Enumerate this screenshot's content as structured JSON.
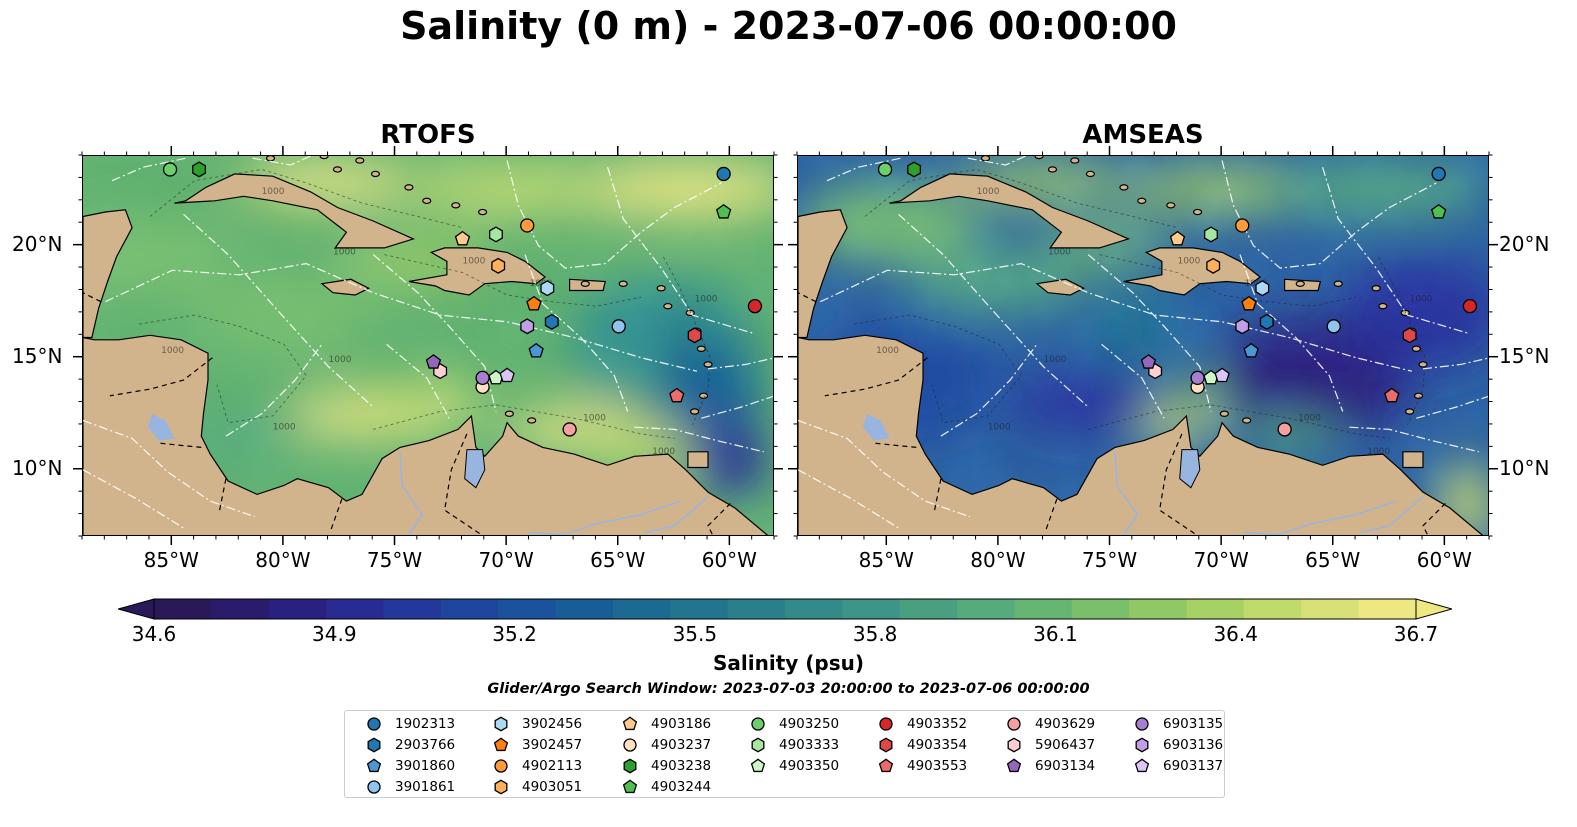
{
  "title": "Salinity (0 m) - 2023-07-06 00:00:00",
  "panels": [
    {
      "title": "RTOFS",
      "theme": "rtofs"
    },
    {
      "title": "AMSEAS",
      "theme": "amseas"
    }
  ],
  "axes": {
    "lat_labels": [
      "20°N",
      "15°N",
      "10°N"
    ],
    "lon_labels": [
      "85°W",
      "80°W",
      "75°W",
      "70°W",
      "65°W",
      "60°W"
    ],
    "lat_values": [
      20,
      15,
      10
    ],
    "lon_values": [
      -85,
      -80,
      -75,
      -70,
      -65,
      -60
    ],
    "lon_range": [
      -89,
      -58
    ],
    "lat_range": [
      7,
      24
    ]
  },
  "colorbar": {
    "label": "Salinity (psu)",
    "min": 34.6,
    "max": 36.7,
    "tick_labels": [
      "34.6",
      "34.9",
      "35.2",
      "35.5",
      "35.8",
      "36.1",
      "36.4",
      "36.7"
    ],
    "colors": [
      "#2a1958",
      "#2b1d7a",
      "#27309a",
      "#1c4a9e",
      "#175e97",
      "#1f728f",
      "#2d858b",
      "#3e9885",
      "#55ab7b",
      "#74bd6d",
      "#9bcd62",
      "#c6dc6e",
      "#efe882"
    ]
  },
  "colors": {
    "land": "#d2b48c",
    "lake": "#98b5df",
    "rtofs_ocean": "#5fb06e",
    "amseas_ocean": "#2b5fa0",
    "deep_pacific": "#2a1a66"
  },
  "search_window": "Glider/Argo Search Window: 2023-07-03 20:00:00 to 2023-07-06 00:00:00",
  "legend": [
    {
      "id": "1902313",
      "marker": "circle",
      "color": "#1f77b4"
    },
    {
      "id": "2903766",
      "marker": "hexagon",
      "color": "#1f77b4"
    },
    {
      "id": "3901860",
      "marker": "pentagon",
      "color": "#4a97d6"
    },
    {
      "id": "3901861",
      "marker": "circle",
      "color": "#90c4ec"
    },
    {
      "id": "3902456",
      "marker": "hexagon",
      "color": "#aed9f5"
    },
    {
      "id": "3902457",
      "marker": "pentagon",
      "color": "#ff7f0e"
    },
    {
      "id": "4902113",
      "marker": "circle",
      "color": "#ff9a3c"
    },
    {
      "id": "4903051",
      "marker": "hexagon",
      "color": "#ffb05a"
    },
    {
      "id": "4903186",
      "marker": "pentagon",
      "color": "#ffc98a"
    },
    {
      "id": "4903237",
      "marker": "circle",
      "color": "#ffe0c0"
    },
    {
      "id": "4903238",
      "marker": "hexagon",
      "color": "#2ca02c"
    },
    {
      "id": "4903244",
      "marker": "pentagon",
      "color": "#4fc04f"
    },
    {
      "id": "4903250",
      "marker": "circle",
      "color": "#6ccf6c"
    },
    {
      "id": "4903333",
      "marker": "hexagon",
      "color": "#a6e6a0"
    },
    {
      "id": "4903350",
      "marker": "pentagon",
      "color": "#cdf7c6"
    },
    {
      "id": "4903352",
      "marker": "circle",
      "color": "#d62728"
    },
    {
      "id": "4903354",
      "marker": "hexagon",
      "color": "#e0474a"
    },
    {
      "id": "4903553",
      "marker": "pentagon",
      "color": "#ee6b6b"
    },
    {
      "id": "4903629",
      "marker": "circle",
      "color": "#f6a1a1"
    },
    {
      "id": "5906437",
      "marker": "hexagon",
      "color": "#fcd0d0"
    },
    {
      "id": "6903134",
      "marker": "pentagon",
      "color": "#9467bd"
    },
    {
      "id": "6903135",
      "marker": "circle",
      "color": "#a77fd1"
    },
    {
      "id": "6903136",
      "marker": "hexagon",
      "color": "#c29ee6"
    },
    {
      "id": "6903137",
      "marker": "pentagon",
      "color": "#dcc5f7"
    }
  ],
  "floats": [
    {
      "id": "1902313",
      "lon": -60.3,
      "lat": 23.2
    },
    {
      "id": "2903766",
      "lon": -68.0,
      "lat": 16.6
    },
    {
      "id": "3901860",
      "lon": -68.7,
      "lat": 15.3
    },
    {
      "id": "3901861",
      "lon": -65.0,
      "lat": 16.4
    },
    {
      "id": "3902456",
      "lon": -68.2,
      "lat": 18.1
    },
    {
      "id": "3902457",
      "lon": -68.8,
      "lat": 17.4
    },
    {
      "id": "4902113",
      "lon": -69.1,
      "lat": 20.9
    },
    {
      "id": "4903051",
      "lon": -70.4,
      "lat": 19.1
    },
    {
      "id": "4903186",
      "lon": -72.0,
      "lat": 20.3
    },
    {
      "id": "4903237",
      "lon": -71.1,
      "lat": 13.7
    },
    {
      "id": "4903238",
      "lon": -83.8,
      "lat": 23.4
    },
    {
      "id": "4903244",
      "lon": -60.3,
      "lat": 21.5
    },
    {
      "id": "4903250",
      "lon": -85.1,
      "lat": 23.4
    },
    {
      "id": "4903333",
      "lon": -70.5,
      "lat": 20.5
    },
    {
      "id": "4903350",
      "lon": -70.5,
      "lat": 14.1
    },
    {
      "id": "4903352",
      "lon": -58.9,
      "lat": 17.3
    },
    {
      "id": "4903354",
      "lon": -61.6,
      "lat": 16.0
    },
    {
      "id": "4903553",
      "lon": -62.4,
      "lat": 13.3
    },
    {
      "id": "4903629",
      "lon": -67.2,
      "lat": 11.8
    },
    {
      "id": "5906437",
      "lon": -73.0,
      "lat": 14.4
    },
    {
      "id": "6903134",
      "lon": -73.3,
      "lat": 14.8
    },
    {
      "id": "6903135",
      "lon": -71.1,
      "lat": 14.1
    },
    {
      "id": "6903136",
      "lon": -69.1,
      "lat": 16.4
    },
    {
      "id": "6903137",
      "lon": -70.0,
      "lat": 14.2
    }
  ]
}
